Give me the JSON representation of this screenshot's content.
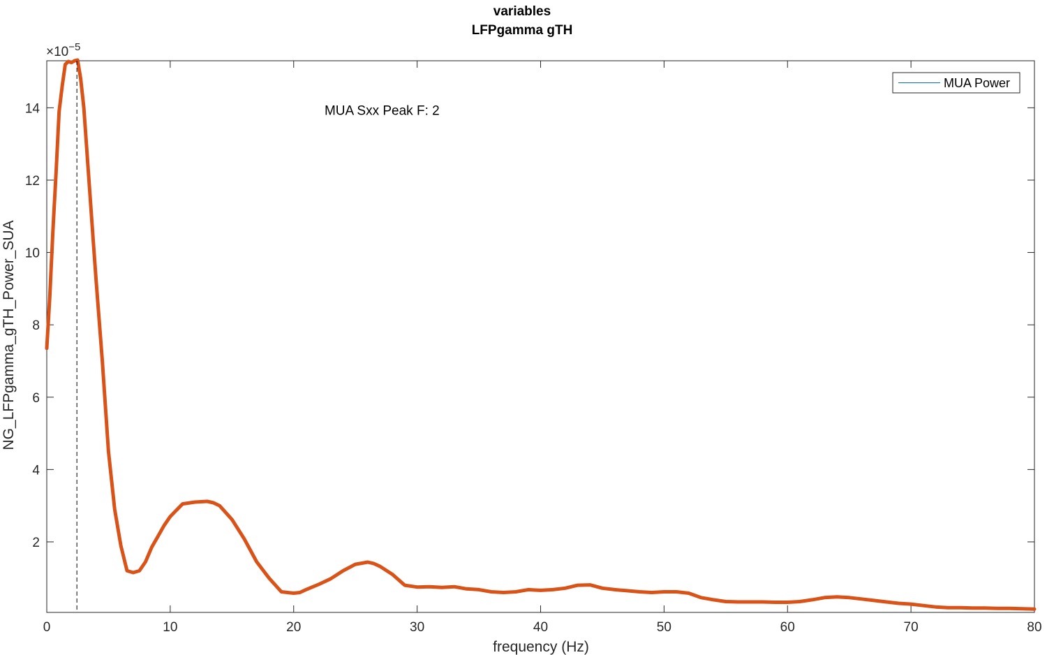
{
  "chart_data": {
    "type": "line",
    "title": "variables",
    "subtitle": "LFPgamma gTH",
    "xlabel": "frequency (Hz)",
    "ylabel": "NG_LFPgamma_gTH_Power_SUA",
    "y_exponent_label": "×10",
    "y_exponent": "−5",
    "xlim": [
      0,
      80
    ],
    "ylim": [
      0.05,
      15.3
    ],
    "x_ticks": [
      0,
      10,
      20,
      30,
      40,
      50,
      60,
      70,
      80
    ],
    "y_ticks": [
      2,
      4,
      6,
      8,
      10,
      12,
      14
    ],
    "grid": false,
    "legend": {
      "placement": "top-right",
      "entries": [
        "MUA Power"
      ]
    },
    "annotation": {
      "text": "MUA Sxx Peak F: 2",
      "x": 22.5,
      "y": 13.8
    },
    "peak_marker": {
      "x": 2.44,
      "style": "dashed"
    },
    "series": [
      {
        "name": "MUA Power",
        "color": "#d95319",
        "x": [
          0,
          0.25,
          0.5,
          0.75,
          1.0,
          1.25,
          1.5,
          1.75,
          2.0,
          2.25,
          2.5,
          2.75,
          3.0,
          3.25,
          3.5,
          3.75,
          4.0,
          4.5,
          5.0,
          5.5,
          6.0,
          6.5,
          7.0,
          7.5,
          8.0,
          8.5,
          9.0,
          9.5,
          10.0,
          11.0,
          12.0,
          13.0,
          13.5,
          14.0,
          15.0,
          16.0,
          17.0,
          18.0,
          19.0,
          20.0,
          20.5,
          21.0,
          22.0,
          23.0,
          24.0,
          25.0,
          26.0,
          26.5,
          27.0,
          28.0,
          29.0,
          30.0,
          31.0,
          32.0,
          33.0,
          34.0,
          35.0,
          36.0,
          37.0,
          38.0,
          39.0,
          40.0,
          41.0,
          42.0,
          43.0,
          44.0,
          45.0,
          46.0,
          47.0,
          48.0,
          49.0,
          50.0,
          51.0,
          52.0,
          53.0,
          54.0,
          55.0,
          56.0,
          57.0,
          58.0,
          59.0,
          60.0,
          61.0,
          62.0,
          63.0,
          64.0,
          65.0,
          66.0,
          67.0,
          68.0,
          69.0,
          70.0,
          71.0,
          72.0,
          73.0,
          74.0,
          75.0,
          76.0,
          77.0,
          78.0,
          79.0,
          80.0
        ],
        "y": [
          7.35,
          8.8,
          10.6,
          12.2,
          13.9,
          14.6,
          15.2,
          15.28,
          15.25,
          15.3,
          15.32,
          14.8,
          14.0,
          12.8,
          11.6,
          10.4,
          9.2,
          7.0,
          4.5,
          2.9,
          1.9,
          1.2,
          1.15,
          1.2,
          1.45,
          1.85,
          2.15,
          2.45,
          2.7,
          3.05,
          3.1,
          3.12,
          3.08,
          3.0,
          2.62,
          2.08,
          1.45,
          1.0,
          0.62,
          0.58,
          0.6,
          0.68,
          0.82,
          0.98,
          1.2,
          1.38,
          1.44,
          1.4,
          1.32,
          1.1,
          0.8,
          0.75,
          0.76,
          0.74,
          0.76,
          0.7,
          0.68,
          0.62,
          0.6,
          0.62,
          0.68,
          0.66,
          0.68,
          0.72,
          0.8,
          0.81,
          0.72,
          0.68,
          0.65,
          0.62,
          0.6,
          0.62,
          0.62,
          0.58,
          0.46,
          0.4,
          0.35,
          0.34,
          0.34,
          0.34,
          0.33,
          0.33,
          0.35,
          0.4,
          0.46,
          0.48,
          0.46,
          0.42,
          0.38,
          0.34,
          0.3,
          0.28,
          0.24,
          0.2,
          0.18,
          0.18,
          0.17,
          0.17,
          0.16,
          0.16,
          0.15,
          0.14
        ]
      }
    ]
  }
}
